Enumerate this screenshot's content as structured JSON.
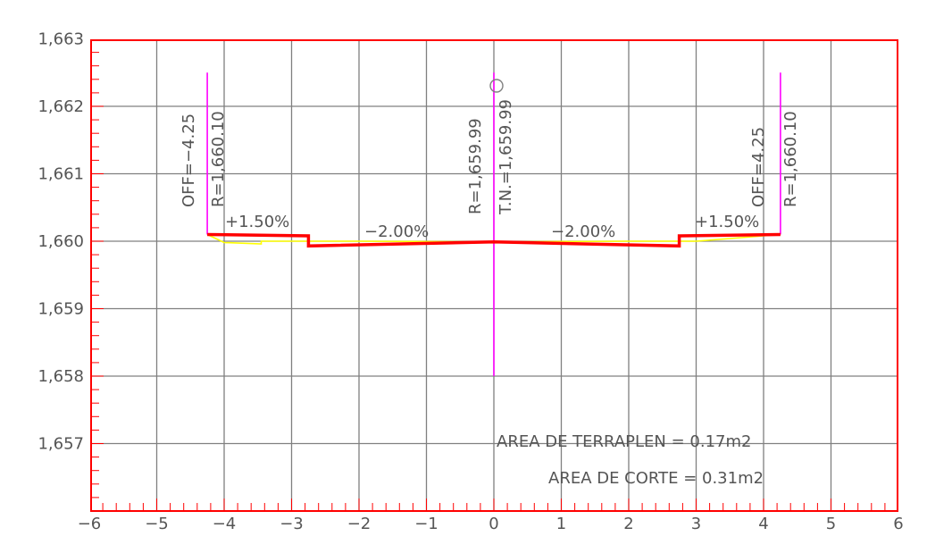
{
  "colors": {
    "background": "#ffffff",
    "grid": "#808080",
    "frame": "#ff0000",
    "ticks": "#ff0000",
    "label_text": "#555555",
    "design_section": "#ff0000",
    "terrain": "#ffff00",
    "offset_markers": "#ff00ff"
  },
  "chart_data": {
    "type": "cross-section",
    "xlim": [
      -6,
      6
    ],
    "ylim": [
      1656,
      1663
    ],
    "x_ticks": [
      "−6",
      "−5",
      "−4",
      "−3",
      "−2",
      "−1",
      "0",
      "1",
      "2",
      "3",
      "4",
      "5",
      "6"
    ],
    "x_tick_values": [
      -6,
      -5,
      -4,
      -3,
      -2,
      -1,
      0,
      1,
      2,
      3,
      4,
      5,
      6
    ],
    "y_ticks": [
      "1,663",
      "1,662",
      "1,661",
      "1,660",
      "1,659",
      "1,658",
      "1,657"
    ],
    "y_tick_values": [
      1663,
      1662,
      1661,
      1660,
      1659,
      1658,
      1657
    ],
    "grid": true,
    "series": [
      {
        "role": "design",
        "values": [
          [
            -4.25,
            1660.1
          ],
          [
            -2.75,
            1660.08
          ],
          [
            -2.75,
            1659.93
          ],
          [
            0,
            1659.99
          ],
          [
            2.75,
            1659.93
          ],
          [
            2.75,
            1660.08
          ],
          [
            4.25,
            1660.1
          ]
        ]
      },
      {
        "role": "terrain",
        "values": [
          [
            -4.25,
            1660.1
          ],
          [
            -4.0,
            1659.98
          ],
          [
            -3.45,
            1659.96
          ],
          [
            -3.45,
            1660.0
          ],
          [
            -2.0,
            1660.0
          ],
          [
            0,
            1659.99
          ],
          [
            2.0,
            1660.0
          ],
          [
            3.0,
            1660.0
          ],
          [
            3.25,
            1660.02
          ],
          [
            4.25,
            1660.1
          ]
        ]
      },
      {
        "role": "offset-left",
        "values": [
          [
            -4.25,
            1660.1
          ],
          [
            -4.25,
            1662.5
          ]
        ]
      },
      {
        "role": "centerline",
        "values": [
          [
            0,
            1658.0
          ],
          [
            0,
            1662.5
          ]
        ]
      },
      {
        "role": "offset-right",
        "values": [
          [
            4.25,
            1660.1
          ],
          [
            4.25,
            1662.5
          ]
        ]
      }
    ],
    "annotations": {
      "off_left": "OFF=−4.25",
      "r_left": "R=1,660.10",
      "r_center": "R=1,659.99",
      "tn_center": "T.N.=1,659.99",
      "off_right": "OFF=4.25",
      "r_right": "R=1,660.10",
      "slope_left_outer": "+1.50%",
      "slope_left_inner": "−2.00%",
      "slope_right_inner": "−2.00%",
      "slope_right_outer": "+1.50%",
      "area_fill": "AREA DE TERRAPLEN = 0.17m2",
      "area_cut": "AREA DE CORTE = 0.31m2"
    }
  }
}
